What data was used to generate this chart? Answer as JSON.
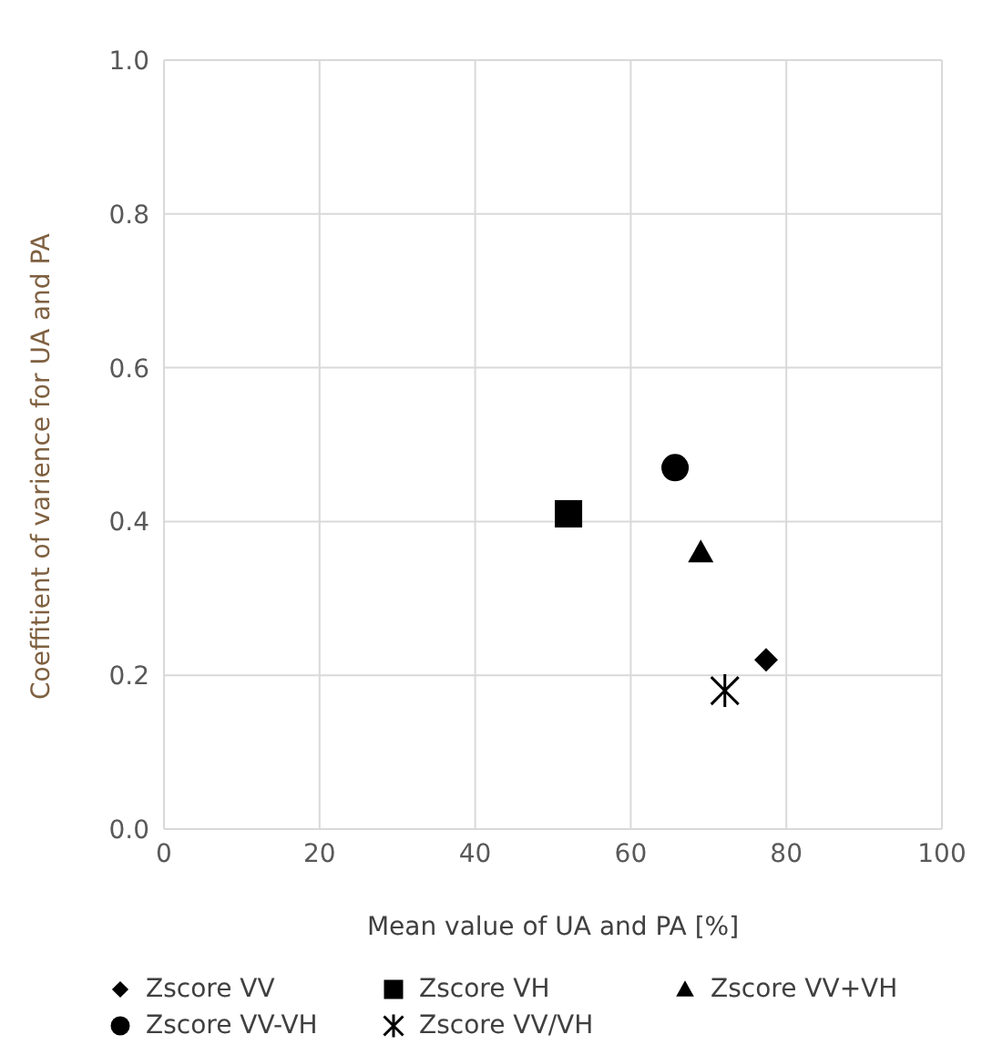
{
  "chart_data": {
    "type": "scatter",
    "xlabel": "Mean value of UA and PA [%]",
    "ylabel": "Coeffitient of varience for UA and PA",
    "xlim": [
      0,
      100
    ],
    "xticks": [
      0,
      20,
      40,
      60,
      80,
      100
    ],
    "ylim": [
      0,
      1
    ],
    "yticks": [
      {
        "value": 0,
        "label": "0.0"
      },
      {
        "value": 0.2,
        "label": "0.2"
      },
      {
        "value": 0.4,
        "label": "0.4"
      },
      {
        "value": 0.6,
        "label": "0.6"
      },
      {
        "value": 0.8,
        "label": "0.8"
      },
      {
        "value": 1,
        "label": "1.0"
      }
    ],
    "grid": true,
    "legend": "bottom",
    "series": [
      {
        "name": "Zscore VV",
        "color": "#000000",
        "marker": "diamond",
        "x": [
          77.4
        ],
        "values": [
          0.22
        ]
      },
      {
        "name": "Zscore VH",
        "color": "#000000",
        "marker": "square",
        "x": [
          52
        ],
        "values": [
          0.41
        ]
      },
      {
        "name": "Zscore VV+VH",
        "color": "#000000",
        "marker": "triangle",
        "x": [
          69
        ],
        "values": [
          0.36
        ]
      },
      {
        "name": "Zscore VV-VH",
        "color": "#000000",
        "marker": "circle",
        "x": [
          65.7
        ],
        "values": [
          0.47
        ]
      },
      {
        "name": "Zscore VV/VH",
        "color": "#000000",
        "marker": "cross",
        "x": [
          72.1
        ],
        "values": [
          0.18
        ]
      }
    ]
  }
}
